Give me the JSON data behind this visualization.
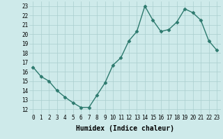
{
  "x": [
    0,
    1,
    2,
    3,
    4,
    5,
    6,
    7,
    8,
    9,
    10,
    11,
    12,
    13,
    14,
    15,
    16,
    17,
    18,
    19,
    20,
    21,
    22,
    23
  ],
  "y": [
    16.5,
    15.5,
    15.0,
    14.0,
    13.3,
    12.7,
    12.2,
    12.2,
    13.5,
    14.8,
    16.7,
    17.5,
    19.3,
    20.3,
    23.0,
    21.5,
    20.3,
    20.5,
    21.3,
    22.7,
    22.3,
    21.5,
    19.3,
    18.3
  ],
  "line_color": "#2d7a6e",
  "marker": "D",
  "marker_size": 2.5,
  "background_color": "#ceeaea",
  "grid_color": "#aacece",
  "xlabel": "Humidex (Indice chaleur)",
  "xlabel_fontsize": 7,
  "xlim": [
    -0.5,
    23.5
  ],
  "ylim": [
    11.5,
    23.5
  ],
  "yticks": [
    12,
    13,
    14,
    15,
    16,
    17,
    18,
    19,
    20,
    21,
    22,
    23
  ],
  "xticks": [
    0,
    1,
    2,
    3,
    4,
    5,
    6,
    7,
    8,
    9,
    10,
    11,
    12,
    13,
    14,
    15,
    16,
    17,
    18,
    19,
    20,
    21,
    22,
    23
  ],
  "tick_fontsize": 5.5,
  "line_width": 1.0
}
